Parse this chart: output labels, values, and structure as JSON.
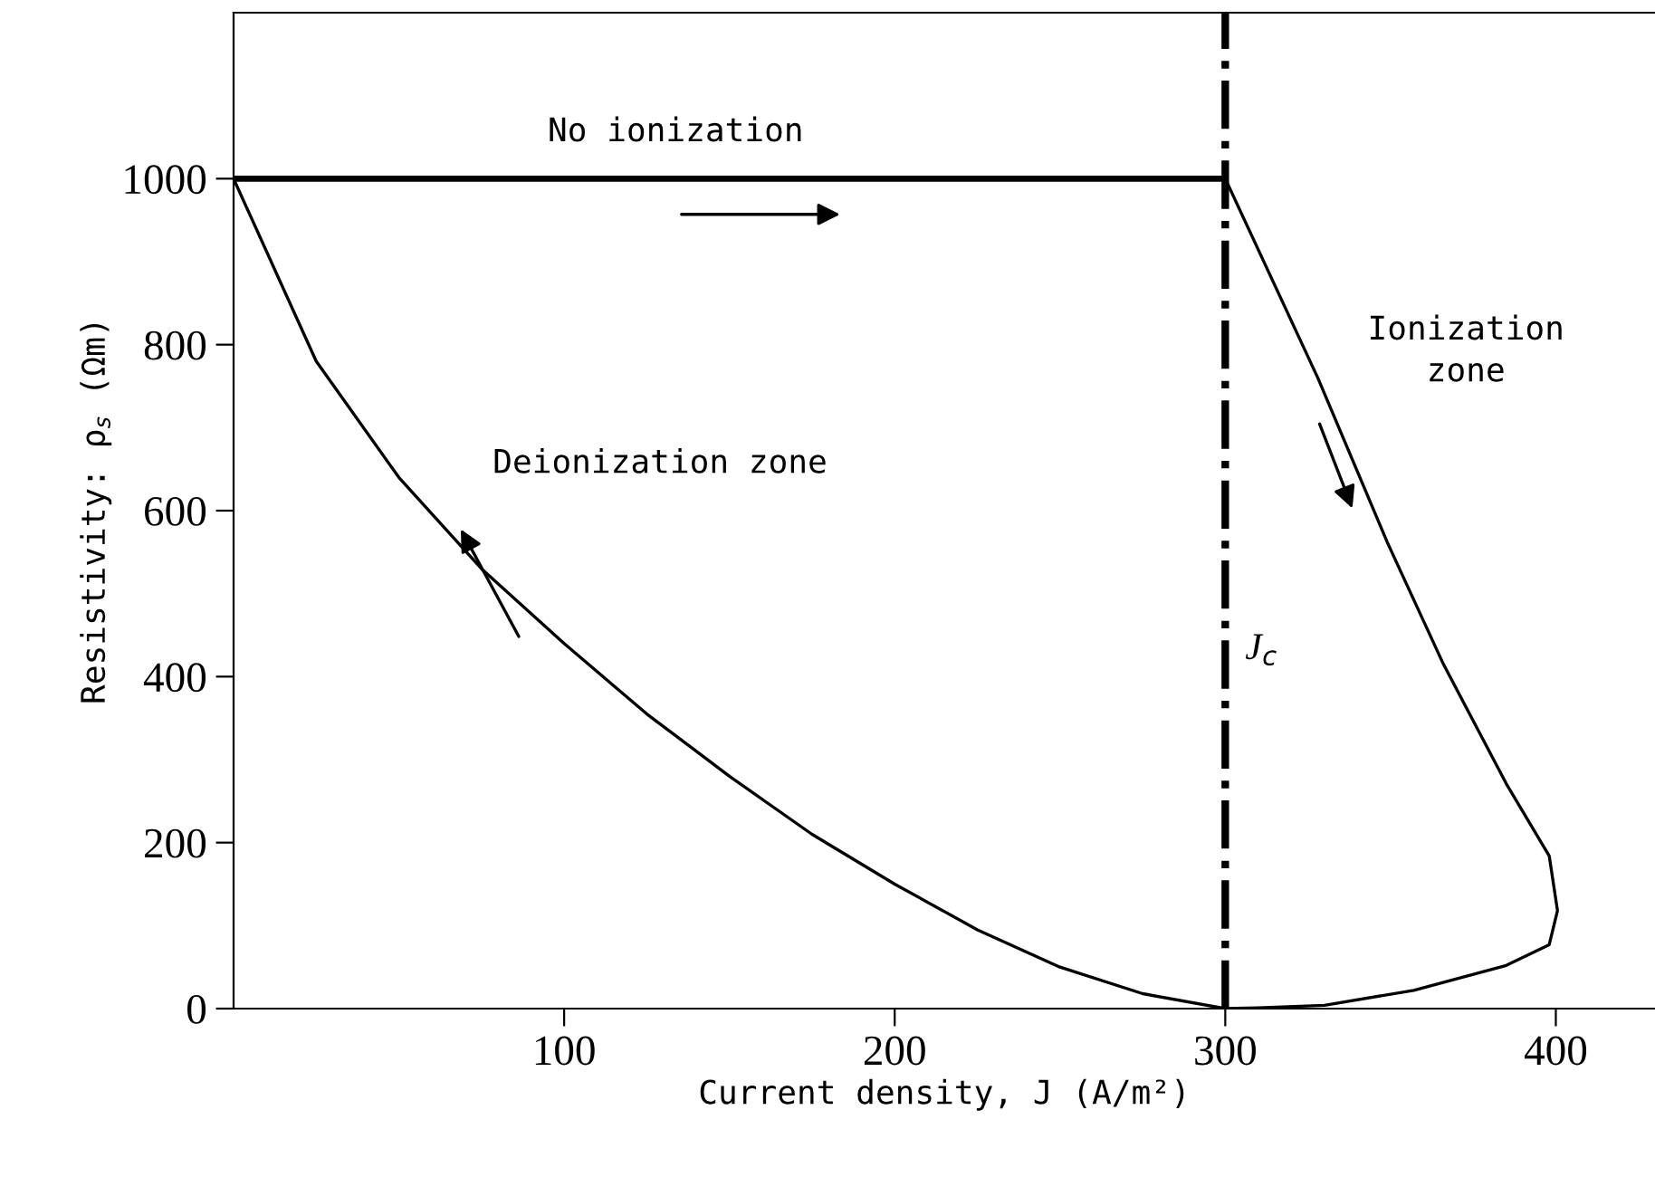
{
  "chart_data": {
    "type": "line",
    "xlabel": "Current density, J (A/m²)",
    "ylabel": "Resistivity: ρ$_{s}$ (Ωm)",
    "xlim": [
      0,
      430
    ],
    "ylim": [
      0,
      1200
    ],
    "xticks": [
      100,
      200,
      300,
      400
    ],
    "yticks": [
      0,
      200,
      400,
      600,
      800,
      1000
    ],
    "grid": false,
    "legend": false,
    "marker": "none",
    "line_style": "solid",
    "series": [
      {
        "color": "#000000",
        "x": [
          0,
          300
        ],
        "values": [
          1000,
          1000
        ]
      },
      {
        "color": "#000000",
        "x": [
          300,
          328,
          349,
          366,
          385,
          398,
          400.5,
          398,
          385,
          357,
          330,
          310,
          300,
          275,
          250,
          225,
          200,
          175,
          150,
          125,
          100,
          75,
          50,
          25,
          0
        ],
        "values": [
          1000,
          760,
          562,
          415,
          271,
          184,
          118,
          77,
          52,
          22,
          4,
          1,
          0,
          18,
          50,
          95,
          150,
          210,
          280,
          355,
          440,
          530,
          640,
          780,
          1000
        ]
      }
    ],
    "ref_lines": [
      {
        "axis": "x",
        "value": 300,
        "label": "J$_{c}$",
        "color": "#000000",
        "line_style": "dashdot"
      }
    ],
    "annotations": [
      "No ionization",
      "Deionization zone",
      "Ionization\nzone"
    ]
  }
}
